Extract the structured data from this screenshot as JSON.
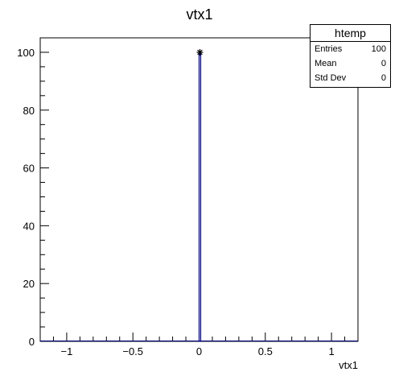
{
  "chart_data": {
    "type": "bar",
    "title": "vtx1",
    "xlabel": "vtx1",
    "ylabel": "",
    "xlim": [
      -1.2,
      1.2
    ],
    "ylim": [
      0,
      105
    ],
    "x_ticks": [
      -1,
      -0.5,
      0,
      0.5,
      1
    ],
    "x_tick_labels": [
      "−1",
      "−0.5",
      "0",
      "0.5",
      "1"
    ],
    "y_ticks": [
      0,
      20,
      40,
      60,
      80,
      100
    ],
    "y_tick_labels": [
      "0",
      "20",
      "40",
      "60",
      "80",
      "100"
    ],
    "bins": [
      {
        "x_low": 0.0,
        "x_high": 0.012,
        "value": 100
      }
    ],
    "points": [
      {
        "x": 0.006,
        "y": 100
      }
    ],
    "grid": false,
    "colors": {
      "bar": "#00007f",
      "marker": "#000000",
      "axis": "#000000"
    }
  },
  "stats": {
    "name": "htemp",
    "rows": [
      {
        "label": "Entries",
        "value": "100"
      },
      {
        "label": "Mean",
        "value": "0"
      },
      {
        "label": "Std Dev",
        "value": "0"
      }
    ]
  }
}
